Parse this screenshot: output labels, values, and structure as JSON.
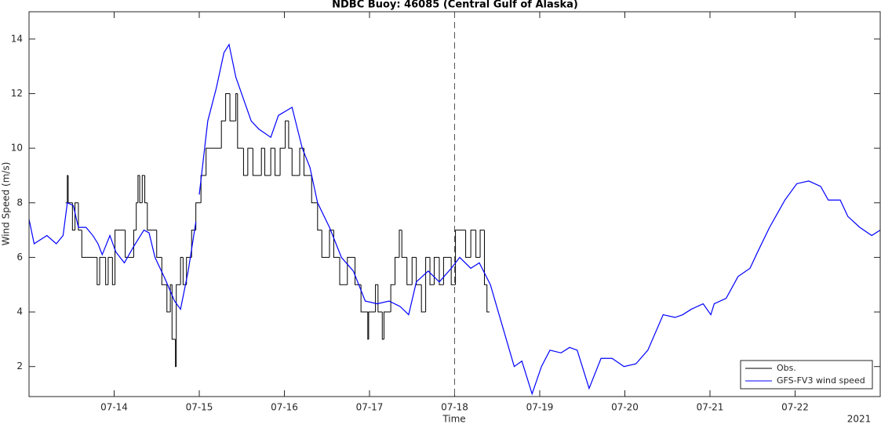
{
  "chart_data": {
    "type": "line",
    "title": "NDBC Buoy: 46085 (Central Gulf of Alaska)",
    "x_label": "Time",
    "y_label": "Wind Speed (m/s)",
    "x_year_label": "2021",
    "xlim": [
      0,
      10
    ],
    "ylim": [
      0.9,
      15
    ],
    "xticks": [
      {
        "value": 1,
        "label": "07-14"
      },
      {
        "value": 2,
        "label": "07-15"
      },
      {
        "value": 3,
        "label": "07-16"
      },
      {
        "value": 4,
        "label": "07-17"
      },
      {
        "value": 5,
        "label": "07-18"
      },
      {
        "value": 6,
        "label": "07-19"
      },
      {
        "value": 7,
        "label": "07-20"
      },
      {
        "value": 8,
        "label": "07-21"
      },
      {
        "value": 9,
        "label": "07-22"
      }
    ],
    "yticks": [
      2,
      4,
      6,
      8,
      10,
      12,
      14
    ],
    "vline": 5,
    "legend": "lower right",
    "grid": false,
    "series": [
      {
        "name": "Obs.",
        "color": "#000000",
        "step": true,
        "x": [
          0.43,
          0.45,
          0.46,
          0.51,
          0.54,
          0.58,
          0.62,
          0.77,
          0.8,
          0.83,
          0.9,
          0.93,
          0.98,
          1.01,
          1.13,
          1.18,
          1.23,
          1.26,
          1.28,
          1.3,
          1.33,
          1.36,
          1.39,
          1.45,
          1.5,
          1.56,
          1.62,
          1.66,
          1.68,
          1.72,
          1.73,
          1.78,
          1.81,
          1.85,
          1.91,
          1.96,
          2.02,
          2.08,
          2.26,
          2.31,
          2.36,
          2.43,
          2.45,
          2.52,
          2.57,
          2.63,
          2.73,
          2.77,
          2.84,
          2.89,
          2.95,
          3.01,
          3.05,
          3.09,
          3.18,
          3.23,
          3.32,
          3.39,
          3.44,
          3.53,
          3.58,
          3.65,
          3.74,
          3.83,
          3.9,
          3.98,
          3.99,
          4.07,
          4.1,
          4.15,
          4.17,
          4.25,
          4.3,
          4.35,
          4.38,
          4.44,
          4.5,
          4.55,
          4.61,
          4.66,
          4.71,
          4.76,
          4.82,
          4.87,
          4.96,
          5.01,
          5.13,
          5.19,
          5.25,
          5.3,
          5.35,
          5.38,
          5.41
        ],
        "values": [
          8,
          9,
          8,
          7,
          8,
          7,
          6,
          6,
          5,
          6,
          5,
          6,
          5,
          7,
          6,
          6,
          7,
          8,
          9,
          8,
          9,
          8,
          7,
          7,
          6,
          5,
          4,
          5,
          3,
          2,
          5,
          6,
          5,
          6,
          7,
          8,
          9,
          10,
          11,
          12,
          11,
          12,
          10,
          9,
          10,
          9,
          10,
          9,
          10,
          9,
          10,
          11,
          10,
          9,
          10,
          9,
          8,
          7,
          6,
          7,
          6,
          5,
          6,
          5,
          4,
          3,
          4,
          5,
          4,
          3,
          4,
          5,
          6,
          7,
          6,
          5,
          6,
          5,
          4,
          6,
          5,
          6,
          5,
          6,
          5,
          7,
          6,
          7,
          6,
          7,
          5,
          4,
          4
        ]
      },
      {
        "name": "GFS-FV3 wind speed",
        "color": "#0000ff",
        "x": [
          0,
          0.06,
          0.21,
          0.32,
          0.4,
          0.45,
          0.52,
          0.58,
          0.67,
          0.75,
          0.81,
          0.86,
          0.95,
          1.02,
          1.12,
          1.23,
          1.35,
          1.41,
          1.48,
          1.6,
          1.71,
          1.78,
          1.87,
          1.96,
          1.98,
          2.0,
          2.1,
          2.2,
          2.29,
          2.35,
          2.43,
          2.52,
          2.61,
          2.7,
          2.84,
          2.93,
          3.09,
          3.21,
          3.3,
          3.39,
          3.53,
          3.67,
          3.81,
          3.95,
          4.09,
          4.23,
          4.36,
          4.46,
          4.55,
          4.69,
          4.82,
          4.96,
          5.06,
          5.19,
          5.29,
          5.42,
          5.56,
          5.7,
          5.79,
          5.91,
          6.02,
          6.12,
          6.25,
          6.35,
          6.44,
          6.58,
          6.72,
          6.85,
          6.99,
          7.13,
          7.27,
          7.45,
          7.59,
          7.68,
          7.78,
          7.92,
          8.01,
          8.05,
          8.19,
          8.33,
          8.47,
          8.56,
          8.7,
          8.79,
          8.88,
          9.02,
          9.16,
          9.3,
          9.39,
          9.53,
          9.62,
          9.76,
          9.9,
          10
        ],
        "values": [
          7.4,
          6.5,
          6.8,
          6.5,
          6.8,
          8.0,
          7.9,
          7.1,
          7.1,
          6.8,
          6.5,
          6.1,
          6.8,
          6.2,
          5.8,
          6.4,
          7.0,
          6.9,
          6.0,
          5.2,
          4.4,
          4.1,
          5.5,
          7.3,
          null,
          8.3,
          11.0,
          12.2,
          13.5,
          13.8,
          12.6,
          11.8,
          11.0,
          10.7,
          10.4,
          11.2,
          11.5,
          10.0,
          9.3,
          8.0,
          7.1,
          6.0,
          5.5,
          4.4,
          4.3,
          4.4,
          4.2,
          3.9,
          5.1,
          5.5,
          5.1,
          5.6,
          6.0,
          5.6,
          5.8,
          5.0,
          3.5,
          2.0,
          2.2,
          1.0,
          2.0,
          2.6,
          2.5,
          2.7,
          2.6,
          1.2,
          2.3,
          2.3,
          2.0,
          2.1,
          2.6,
          3.9,
          3.8,
          3.9,
          4.1,
          4.3,
          3.9,
          4.3,
          4.5,
          5.3,
          5.6,
          6.2,
          7.1,
          7.6,
          8.1,
          8.7,
          8.8,
          8.6,
          8.1,
          8.1,
          7.5,
          7.1,
          6.8,
          7.0
        ]
      }
    ]
  }
}
